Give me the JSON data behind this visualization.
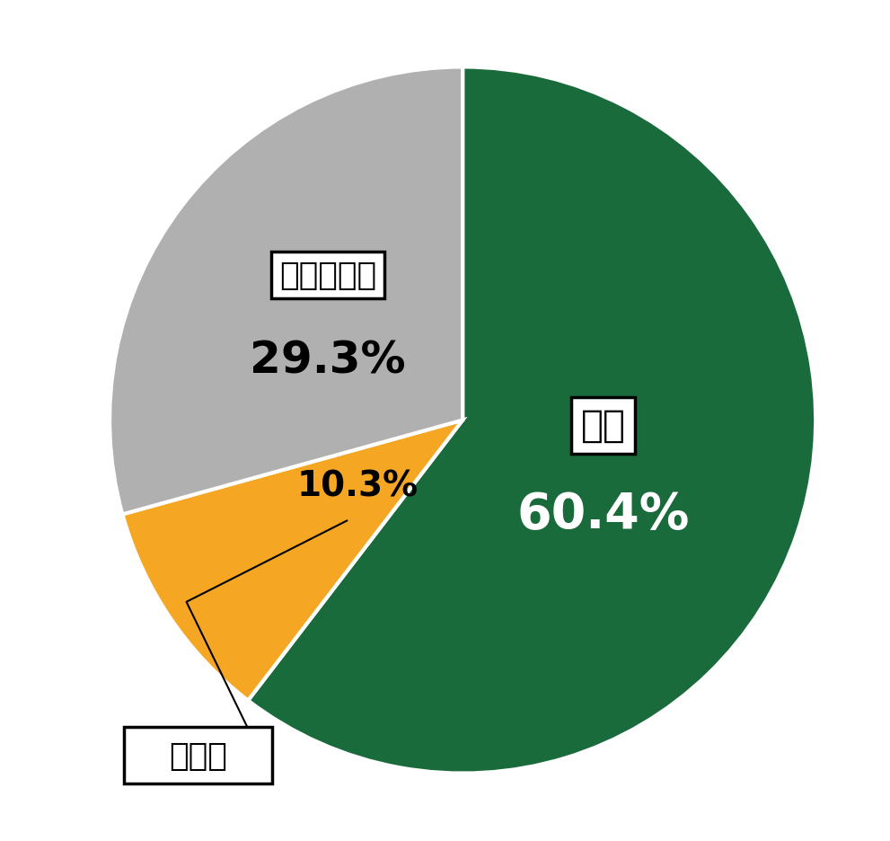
{
  "labels": [
    "はい",
    "いいえ",
    "わからない"
  ],
  "values": [
    60.4,
    10.3,
    29.3
  ],
  "colors": [
    "#1a6b3c",
    "#f5a623",
    "#b0b0b0"
  ],
  "pct_texts": [
    "60.4%",
    "10.3%",
    "29.3%"
  ],
  "background_color": "#ffffff",
  "startangle": 90,
  "edge_color": "#ffffff",
  "edge_linewidth": 3
}
